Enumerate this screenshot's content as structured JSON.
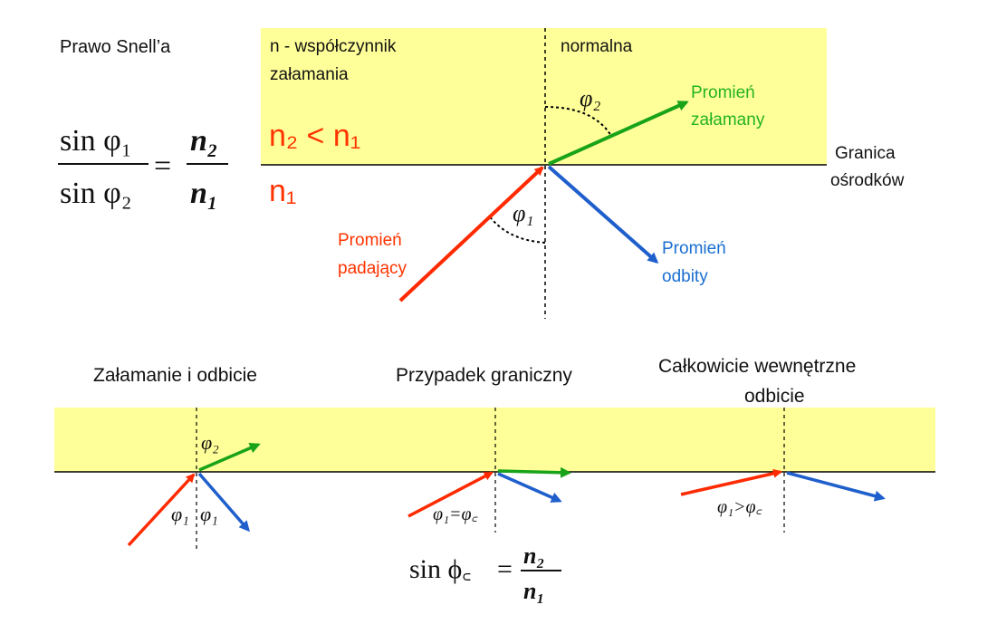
{
  "colors": {
    "medium_fill": "#ffff99",
    "incident": "#ff2a00",
    "refracted": "#19a319",
    "reflected": "#1f5fcc",
    "label_red": "#ff3300",
    "label_green": "#23b323",
    "label_blue": "#1a6fd0",
    "text": "#111111"
  },
  "main": {
    "title": "Prawo Snell’a",
    "n_definition_line1": "n - współczynnik",
    "n_definition_line2": "załamania",
    "normal_label": "normalna",
    "boundary_line1": "Granica",
    "boundary_line2": "ośrodków",
    "n2_lt_n1": "n₂ < n₁",
    "n1": "n₁",
    "refracted_line1": "Promień",
    "refracted_line2": "załamany",
    "reflected_line1": "Promień",
    "reflected_line2": "odbity",
    "incident_line1": "Promień",
    "incident_line2": "padający",
    "phi1": "φ₁",
    "phi2": "φ₂",
    "formula": {
      "num_left": "sin φ₁",
      "den_left": "sin φ₂",
      "equals": "=",
      "num_right": "n₂",
      "den_right": "n₁"
    }
  },
  "cases": [
    {
      "title": "Załamanie i odbicie",
      "angle_refracted": "φ₂",
      "angle_left": "φ₁",
      "angle_right": "φ₁"
    },
    {
      "title": "Przypadek graniczny",
      "angle_label": "φ₁=φ꜀"
    },
    {
      "title_line1": "Całkowicie wewnętrzne",
      "title_line2": "odbicie",
      "angle_label": "φ₁>φ꜀"
    }
  ],
  "critical_formula": {
    "lhs": "sin ϕ꜀",
    "equals": "=",
    "num": "n₂",
    "den": "n₁"
  }
}
